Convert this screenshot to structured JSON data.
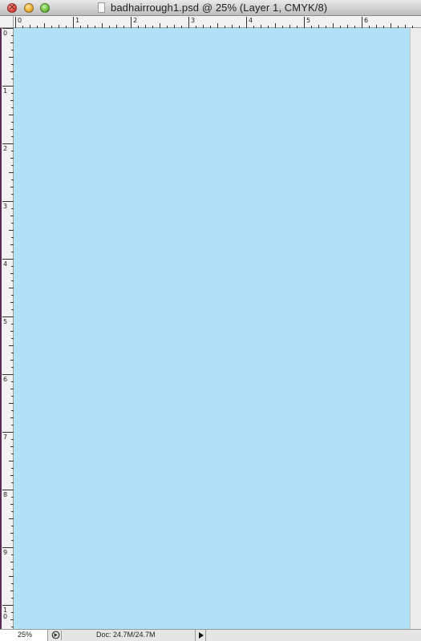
{
  "window": {
    "title": "badhairrough1.psd @ 25% (Layer 1, CMYK/8)"
  },
  "rulers": {
    "horizontal_labels": [
      "0",
      "1",
      "2",
      "3",
      "4",
      "5",
      "6"
    ],
    "vertical_labels": [
      "0",
      "1",
      "2",
      "3",
      "4",
      "5",
      "6",
      "7",
      "8",
      "9",
      "10"
    ]
  },
  "canvas": {
    "fill_color": "#b1e1f6"
  },
  "statusbar": {
    "zoom": "25%",
    "doc_info": "Doc: 24.7M/24.7M"
  },
  "icons": {
    "close": "close-icon",
    "minimize": "minimize-icon",
    "zoom": "zoom-icon",
    "document": "document-proxy-icon",
    "status": "status-options-icon",
    "menu_arrow": "play-arrow-icon"
  }
}
